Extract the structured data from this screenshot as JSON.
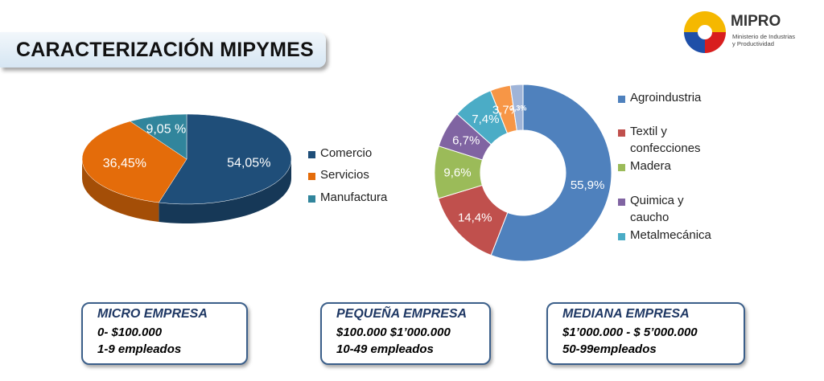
{
  "header": {
    "title": "CARACTERIZACIÓN MIPYMES"
  },
  "logo": {
    "name": "MIPRO",
    "line1": "Ministerio de Industrias",
    "line2": "y Productividad"
  },
  "colors": {
    "comercio": "#1f4e79",
    "servicios": "#e46c0a",
    "manufactura": "#31859c",
    "agroindustria": "#4f81bd",
    "textil": "#c0504d",
    "madera": "#9bbb59",
    "quimica": "#8064a2",
    "metalmecanica": "#4bacc6",
    "orange2": "#f79646",
    "other": "#9fb4d8"
  },
  "chart_data": [
    {
      "type": "pie",
      "style": "3d",
      "categories": [
        "Comercio",
        "Servicios",
        "Manufactura"
      ],
      "values": [
        54.05,
        36.45,
        9.05
      ],
      "labels": [
        "54,05%",
        "36,45%",
        "9,05 %"
      ],
      "legend": [
        "Comercio",
        "Servicios",
        "Manufactura"
      ]
    },
    {
      "type": "doughnut",
      "categories": [
        "Agroindustria",
        "Textil y confecciones",
        "Madera",
        "Quimica y caucho",
        "Metalmecánica",
        "",
        ""
      ],
      "values": [
        55.9,
        14.4,
        9.6,
        6.7,
        7.4,
        3.7,
        2.3
      ],
      "labels": [
        "55,9%",
        "14,4%",
        "9,6%",
        "6,7%",
        "7,4%",
        "3,7%",
        "2,3%"
      ],
      "legend": [
        "Agroindustria",
        "Textil y confecciones",
        "Madera",
        "Quimica y caucho",
        "Metalmecánica"
      ]
    }
  ],
  "legend1": {
    "comercio": "Comercio",
    "servicios": "Servicios",
    "manufactura": "Manufactura"
  },
  "legend2": {
    "agro": "Agroindustria",
    "textil1": "Textil y",
    "textil2": "confecciones",
    "madera": "Madera",
    "quimica1": "Quimica y",
    "quimica2": "caucho",
    "metal": "Metalmecánica"
  },
  "boxes": {
    "micro": {
      "title": "MICRO EMPRESA",
      "range": "0- $100.000",
      "employees": "1-9 empleados"
    },
    "pequena": {
      "title": "PEQUEÑA EMPRESA",
      "range": "$100.000 $1’000.000",
      "employees": "10-49 empleados"
    },
    "mediana": {
      "title": "MEDIANA EMPRESA",
      "range": "$1’000.000  -  $ 5’000.000",
      "employees": "50-99empleados"
    }
  }
}
